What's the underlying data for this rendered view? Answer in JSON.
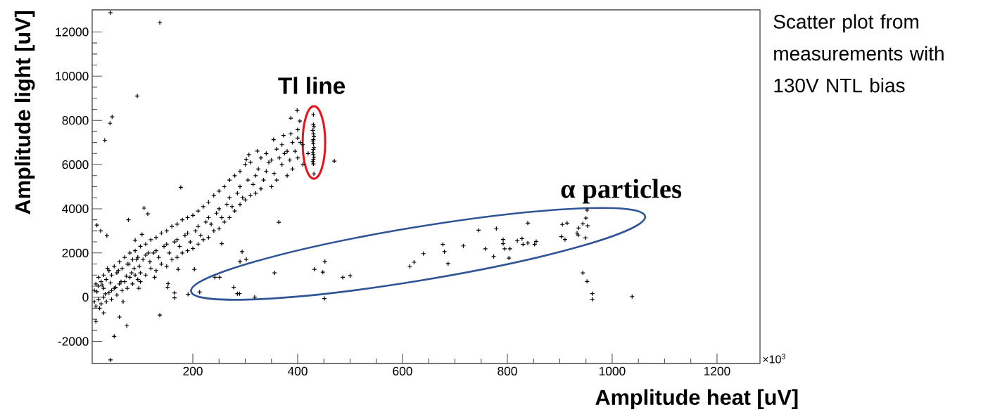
{
  "chart_data": {
    "type": "scatter",
    "xlabel": "Amplitude heat [uV]",
    "ylabel": "Amplitude light [uV]",
    "annotations": [
      "Scatter plot from measurements with 130V NTL bias",
      "×10$^{3}$",
      "α particles",
      {
        "text": "Tl line",
        "x": 431,
        "y": 7000
      }
    ],
    "xlim": [
      8,
      1282
    ],
    "ylim": [
      -3000,
      13000
    ],
    "xticks": [
      200,
      400,
      600,
      800,
      1000,
      1200
    ],
    "yticks": [
      -2000,
      0,
      2000,
      4000,
      6000,
      8000,
      10000,
      12000
    ],
    "marker": "cross",
    "grid": false,
    "series": [
      {
        "color": "#000000",
        "x": [
          43,
          137,
          94,
          46,
          42,
          32,
          430,
          430,
          431,
          429,
          430,
          431,
          430,
          429,
          430,
          431,
          430,
          429,
          430,
          431,
          430,
          429,
          430,
          431,
          470,
          399,
          387,
          404,
          400,
          373,
          387,
          354,
          323,
          302,
          307,
          177,
          107,
          114,
          77,
          17,
          24,
          36,
          103,
          90,
          364,
          255,
          294,
          302,
          290,
          203,
          172,
          242,
          251,
          278,
          285,
          289,
          213,
          191,
          165,
          165,
          153,
          152,
          137,
          60,
          74,
          50,
          43,
          15,
          30,
          318,
          356,
          432,
          448,
          452,
          451,
          486,
          500,
          614,
          622,
          640,
          677,
          680,
          687,
          716,
          745,
          758,
          774,
          779,
          792,
          792,
          795,
          805,
          803,
          819,
          828,
          830,
          839,
          839,
          852,
          855,
          903,
          910,
          905,
          914,
          933,
          935,
          936,
          944,
          950,
          952,
          953,
          949,
          944,
          952,
          962,
          962,
          1038,
          12,
          12,
          15,
          15,
          20,
          20,
          20,
          25,
          25,
          30,
          30,
          30,
          35,
          35,
          40,
          40,
          45,
          45,
          45,
          50,
          50,
          55,
          55,
          60,
          60,
          65,
          65,
          70,
          70,
          75,
          75,
          80,
          80,
          85,
          85,
          90,
          90,
          95,
          95,
          100,
          100,
          100,
          110,
          110,
          110,
          120,
          120,
          130,
          130,
          130,
          140,
          140,
          150,
          150,
          150,
          160,
          160,
          170,
          170,
          170,
          180,
          180,
          190,
          190,
          190,
          200,
          200,
          210,
          210,
          210,
          220,
          220,
          230,
          230,
          230,
          240,
          240,
          250,
          250,
          250,
          260,
          260,
          270,
          270,
          270,
          280,
          280,
          290,
          290,
          290,
          300,
          300,
          310,
          310,
          320,
          320,
          330,
          330,
          340,
          340,
          350,
          350,
          360,
          360,
          370,
          370,
          380,
          380,
          390,
          390,
          400,
          400,
          410,
          410,
          420,
          17,
          27,
          33,
          43,
          53,
          58,
          63,
          73,
          78,
          83,
          88,
          93,
          98,
          105,
          115,
          118,
          125,
          135,
          145,
          155,
          165,
          175,
          185,
          195,
          205,
          215,
          225,
          235,
          245,
          255,
          265,
          275,
          285,
          295,
          305,
          315,
          325,
          335,
          345,
          355,
          365,
          375,
          385,
          395,
          405,
          22,
          37,
          67,
          97,
          127
        ],
        "values": [
          12870,
          12420,
          9100,
          8160,
          7870,
          7100,
          8260,
          7810,
          7710,
          7550,
          7390,
          7260,
          7130,
          7060,
          6940,
          6770,
          6680,
          6550,
          6450,
          6320,
          6230,
          6130,
          6030,
          5580,
          6160,
          8450,
          8100,
          7970,
          7580,
          7320,
          7390,
          7130,
          6610,
          6230,
          6450,
          4970,
          4030,
          3770,
          3500,
          3260,
          3000,
          2780,
          2840,
          2580,
          3390,
          2420,
          2060,
          1710,
          1610,
          1260,
          1260,
          900,
          900,
          450,
          160,
          160,
          230,
          130,
          190,
          -30,
          610,
          450,
          -810,
          -900,
          -1290,
          -1770,
          -2840,
          -1100,
          -710,
          0,
          1100,
          1260,
          1130,
          1610,
          -60,
          900,
          970,
          1390,
          1580,
          1970,
          2390,
          2060,
          1520,
          2320,
          3030,
          2190,
          1840,
          3100,
          2610,
          2420,
          2190,
          2190,
          1770,
          2550,
          2650,
          2390,
          3350,
          2450,
          2390,
          2520,
          2740,
          2610,
          3290,
          3350,
          2900,
          2810,
          3130,
          3320,
          3580,
          3940,
          3230,
          2680,
          1100,
          710,
          160,
          -100,
          30,
          -200,
          300,
          600,
          -400,
          -100,
          500,
          900,
          -300,
          700,
          0,
          1000,
          400,
          -200,
          800,
          200,
          1200,
          300,
          1000,
          -100,
          1400,
          400,
          100,
          1100,
          1600,
          600,
          300,
          1300,
          1800,
          700,
          400,
          1500,
          2000,
          900,
          600,
          1700,
          2100,
          1000,
          800,
          1800,
          2300,
          1100,
          700,
          1000,
          2400,
          1900,
          2600,
          1300,
          1200,
          2700,
          2100,
          2900,
          1500,
          1400,
          3000,
          2400,
          3200,
          1700,
          1800,
          3300,
          2600,
          3500,
          2000,
          2100,
          3600,
          2900,
          3700,
          2200,
          2400,
          3900,
          3200,
          4100,
          2600,
          2700,
          4300,
          3600,
          4600,
          3000,
          3100,
          4800,
          4000,
          5000,
          3400,
          3600,
          5300,
          4500,
          5500,
          3900,
          4200,
          5700,
          5000,
          6000,
          4400,
          4600,
          6100,
          5500,
          4700,
          6300,
          4900,
          5700,
          6500,
          5000,
          6200,
          6700,
          5300,
          6000,
          6900,
          5500,
          6600,
          7000,
          5800,
          6300,
          7200,
          6000,
          6900,
          6500,
          250,
          550,
          150,
          650,
          450,
          1200,
          700,
          950,
          1500,
          1100,
          1300,
          1700,
          1400,
          1700,
          2000,
          1600,
          2000,
          1800,
          2300,
          2000,
          2500,
          2300,
          2800,
          2500,
          3000,
          2800,
          3400,
          3300,
          3800,
          3600,
          4200,
          4100,
          4700,
          4500,
          5300,
          5100,
          5800,
          5300,
          6100,
          5600,
          6300,
          6500,
          6200,
          6600,
          7000,
          -500,
          1300,
          -200,
          400,
          900
        ]
      }
    ]
  }
}
